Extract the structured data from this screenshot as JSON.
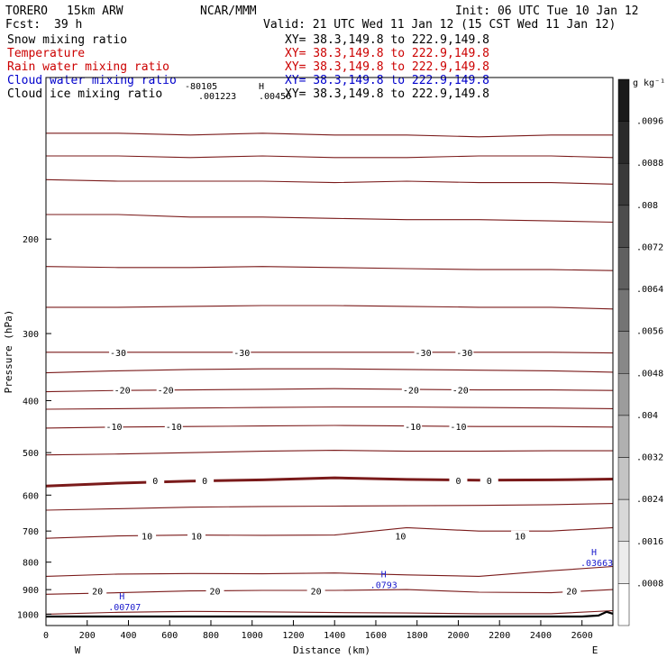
{
  "header": {
    "model": "TORERO",
    "run": "15km ARW",
    "center": "NCAR/MMM",
    "init": "Init: 06 UTC Tue 10 Jan 12",
    "fcst_label": "Fcst:",
    "fcst_value": "39 h",
    "valid": "Valid: 21 UTC Wed 11 Jan 12 (15 CST Wed 11 Jan 12)"
  },
  "fields": [
    {
      "name": "Snow mixing ratio",
      "xy": "XY=  38.3,149.8 to 222.9,149.8",
      "color": "#000000"
    },
    {
      "name": "Temperature",
      "xy": "XY=  38.3,149.8 to 222.9,149.8",
      "color": "#cc0000"
    },
    {
      "name": "Rain water mixing ratio",
      "xy": "XY=  38.3,149.8 to 222.9,149.8",
      "color": "#cc0000"
    },
    {
      "name": "Cloud water mixing ratio",
      "xy": "XY=  38.3,149.8 to 222.9,149.8",
      "color": "#0000cc"
    },
    {
      "name": "Cloud ice mixing ratio",
      "xy": "XY=  38.3,149.8 to 222.9,149.8",
      "color": "#000000"
    }
  ],
  "top_labels": {
    "a": "-80105",
    "b": ".001223",
    "c": ".00456",
    "d": "H"
  },
  "colorbar": {
    "unit": "g kg⁻¹",
    "ticks": [
      ".0096",
      ".0088",
      ".008",
      ".0072",
      ".0064",
      ".0056",
      ".0048",
      ".004",
      ".0032",
      ".0024",
      ".0016",
      ".0008"
    ],
    "colors": [
      "#1a1a1a",
      "#2a2a2a",
      "#3a3a3a",
      "#4d4d4d",
      "#606060",
      "#747474",
      "#888888",
      "#9c9c9c",
      "#b0b0b0",
      "#c4c4c4",
      "#d8d8d8",
      "#ececec",
      "#ffffff"
    ]
  },
  "chart_data": {
    "type": "line",
    "xlabel": "Distance (km)",
    "ylabel": "Pressure (hPa)",
    "xlim": [
      0,
      2750
    ],
    "ylim": [
      100,
      1050
    ],
    "y_log_scale": true,
    "xticks": [
      "0",
      "200",
      "400",
      "600",
      "800",
      "1000",
      "1200",
      "1400",
      "1600",
      "1800",
      "2000",
      "2200",
      "2400",
      "2600"
    ],
    "yticks": [
      "200",
      "300",
      "400",
      "500",
      "600",
      "700",
      "800",
      "900",
      "1000"
    ],
    "x_end_labels": {
      "left": "W",
      "right": "E"
    },
    "temperature_labels": [
      {
        "text": "-30",
        "x": [
          350,
          950,
          1830,
          2030
        ],
        "p": 325
      },
      {
        "text": "-20",
        "x": [
          370,
          580,
          1770,
          2010
        ],
        "p": 382
      },
      {
        "text": "-10",
        "x": [
          330,
          620,
          1780,
          2000
        ],
        "p": 447
      },
      {
        "text": "0",
        "x": [
          530,
          770,
          2000,
          2150
        ],
        "p": 563
      },
      {
        "text": "10",
        "x": [
          490,
          730,
          1720,
          2300
        ],
        "p": 715
      },
      {
        "text": "20",
        "x": [
          250,
          820,
          1310,
          2550
        ],
        "p": 905
      }
    ],
    "cloud_water_labels": [
      {
        "text": ".00707",
        "x": 390,
        "p": 953,
        "max": "H"
      },
      {
        "text": ".0793",
        "x": 1660,
        "p": 867,
        "max": "H"
      },
      {
        "text": ".03663",
        "x": 2680,
        "p": 788,
        "max": "H"
      }
    ],
    "isotherms": [
      {
        "t": -60,
        "p": [
          127,
          127,
          128,
          127,
          128,
          128,
          129,
          128,
          128
        ]
      },
      {
        "t": -55,
        "p": [
          140,
          140,
          141,
          140,
          141,
          141,
          140,
          140,
          141
        ]
      },
      {
        "t": -50,
        "p": [
          155,
          156,
          156,
          156,
          157,
          156,
          157,
          157,
          158
        ]
      },
      {
        "t": -45,
        "p": [
          180,
          180,
          182,
          182,
          183,
          184,
          184,
          185,
          186
        ]
      },
      {
        "t": -40,
        "p": [
          225,
          226,
          226,
          225,
          226,
          227,
          228,
          228,
          229
        ]
      },
      {
        "t": -35,
        "p": [
          268,
          268,
          267,
          266,
          266,
          267,
          268,
          268,
          270
        ]
      },
      {
        "t": -30,
        "p": [
          325,
          325,
          325,
          325,
          325,
          325,
          325,
          325,
          326
        ]
      },
      {
        "t": -25,
        "p": [
          355,
          352,
          350,
          349,
          349,
          350,
          351,
          352,
          354
        ]
      },
      {
        "t": -20,
        "p": [
          385,
          383,
          382,
          381,
          380,
          381,
          382,
          382,
          383
        ]
      },
      {
        "t": -15,
        "p": [
          415,
          414,
          413,
          412,
          411,
          411,
          412,
          413,
          414
        ]
      },
      {
        "t": -10,
        "p": [
          450,
          448,
          447,
          446,
          445,
          446,
          447,
          447,
          448
        ]
      },
      {
        "t": -5,
        "p": [
          505,
          503,
          500,
          497,
          495,
          497,
          497,
          496,
          496
        ]
      },
      {
        "t": 5,
        "p": [
          640,
          636,
          632,
          630,
          629,
          628,
          627,
          625,
          622
        ]
      },
      {
        "t": 10,
        "p": [
          722,
          715,
          712,
          713,
          712,
          690,
          700,
          700,
          690
        ]
      },
      {
        "t": 15,
        "p": [
          850,
          842,
          840,
          841,
          838,
          845,
          850,
          830,
          815
        ]
      },
      {
        "t": 20,
        "p": [
          918,
          912,
          905,
          903,
          903,
          900,
          910,
          912,
          900
        ]
      },
      {
        "t": 25,
        "p": [
          1000,
          992,
          988,
          990,
          993,
          995,
          998,
          998,
          985
        ]
      }
    ],
    "freezing_level": {
      "t": 0,
      "p": [
        577,
        570,
        565,
        562,
        557,
        561,
        563,
        562,
        560
      ]
    },
    "x_positions": [
      0,
      350,
      700,
      1050,
      1400,
      1750,
      2100,
      2450,
      2750
    ],
    "surface": {
      "x": [
        0,
        2600,
        2680,
        2720,
        2750
      ],
      "p": [
        1010,
        1010,
        1006,
        990,
        998
      ]
    }
  }
}
